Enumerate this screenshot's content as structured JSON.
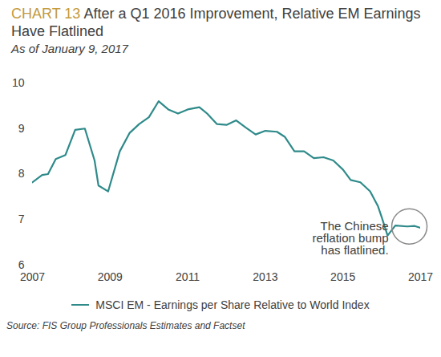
{
  "chart_data": {
    "type": "line",
    "chart_label": "CHART 13",
    "title": "After a Q1 2016 Improvement, Relative EM Earnings Have Flatlined",
    "subtitle": "As of January 9, 2017",
    "annotation": "The Chinese reflation bump has flatlined.",
    "source": "Source: FIS Group Professionals Estimates and Factset",
    "x": [
      2007.0,
      2007.25,
      2007.4,
      2007.6,
      2007.85,
      2008.1,
      2008.35,
      2008.6,
      2008.7,
      2008.95,
      2009.25,
      2009.5,
      2009.75,
      2010.0,
      2010.25,
      2010.5,
      2010.75,
      2011.0,
      2011.3,
      2011.5,
      2011.75,
      2012.0,
      2012.25,
      2012.5,
      2012.75,
      2013.0,
      2013.3,
      2013.5,
      2013.75,
      2014.0,
      2014.25,
      2014.5,
      2014.75,
      2015.0,
      2015.2,
      2015.45,
      2015.7,
      2015.9,
      2016.0,
      2016.15,
      2016.35,
      2016.65,
      2016.85,
      2017.0
    ],
    "series": [
      {
        "name": "MSCI EM - Earnings per Share Relative to World Index",
        "color": "#2f8a8a",
        "values": [
          7.82,
          7.98,
          8.0,
          8.33,
          8.42,
          8.97,
          9.0,
          8.3,
          7.75,
          7.62,
          8.5,
          8.9,
          9.1,
          9.25,
          9.6,
          9.42,
          9.33,
          9.42,
          9.47,
          9.33,
          9.1,
          9.08,
          9.18,
          9.02,
          8.87,
          8.95,
          8.93,
          8.82,
          8.5,
          8.5,
          8.35,
          8.37,
          8.3,
          8.1,
          7.87,
          7.82,
          7.62,
          7.3,
          7.05,
          6.65,
          6.87,
          6.85,
          6.86,
          6.82
        ]
      }
    ],
    "xlim": [
      2007,
      2017
    ],
    "ylim": [
      6,
      10
    ],
    "xticks": [
      2007,
      2009,
      2011,
      2013,
      2015,
      2017
    ],
    "yticks": [
      6,
      7,
      8,
      9,
      10
    ],
    "grid": false,
    "legend": "bottom"
  }
}
